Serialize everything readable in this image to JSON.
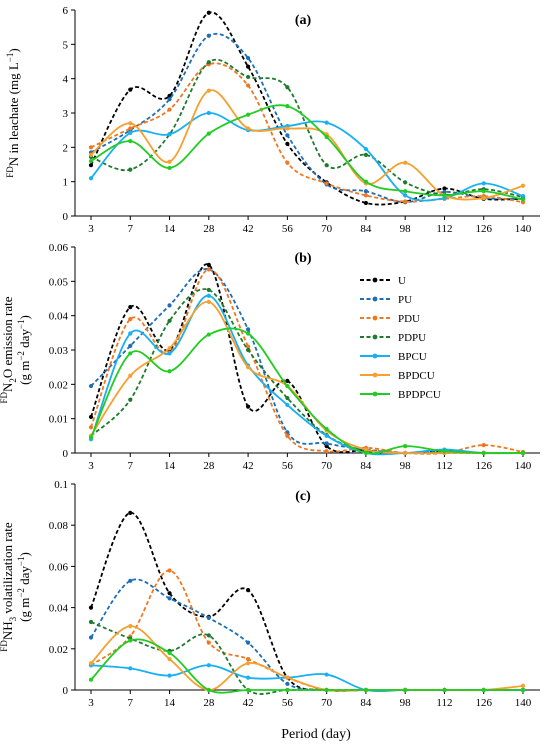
{
  "figure": {
    "xlabel": "Period (day)"
  },
  "chart_data": [
    {
      "type": "line",
      "panel_label": "(a)",
      "ylabel": {
        "prefix_sup": "FD",
        "main": "N in leachate (mg L",
        "unit_sup": "−1",
        "suffix": ")"
      },
      "categories": [
        "3",
        "7",
        "14",
        "28",
        "42",
        "56",
        "70",
        "84",
        "98",
        "112",
        "126",
        "140"
      ],
      "ylim": [
        0,
        6
      ],
      "yticks": [
        "0",
        "1",
        "2",
        "3",
        "4",
        "5",
        "6"
      ],
      "series": [
        {
          "name": "U",
          "values": [
            1.48,
            3.68,
            3.5,
            5.92,
            4.35,
            2.1,
            0.98,
            0.38,
            0.42,
            0.8,
            0.5,
            0.5
          ]
        },
        {
          "name": "PU",
          "values": [
            1.85,
            2.5,
            3.4,
            5.25,
            4.6,
            2.35,
            0.92,
            0.72,
            0.4,
            0.7,
            0.52,
            0.5
          ]
        },
        {
          "name": "PDU",
          "values": [
            2.0,
            2.55,
            3.1,
            4.42,
            3.8,
            1.55,
            0.95,
            0.6,
            0.42,
            0.5,
            0.58,
            0.4
          ]
        },
        {
          "name": "PDPU",
          "values": [
            1.72,
            1.35,
            2.38,
            4.48,
            4.05,
            3.75,
            1.48,
            1.78,
            0.98,
            0.62,
            0.78,
            0.55
          ]
        },
        {
          "name": "BPCU",
          "values": [
            1.1,
            2.42,
            2.38,
            3.0,
            2.5,
            2.62,
            2.72,
            1.95,
            0.6,
            0.52,
            0.95,
            0.58
          ]
        },
        {
          "name": "BPDCU",
          "values": [
            1.78,
            2.7,
            1.58,
            3.65,
            2.55,
            2.55,
            2.38,
            0.95,
            1.55,
            0.6,
            0.52,
            0.88
          ]
        },
        {
          "name": "BPDPCU",
          "values": [
            1.6,
            2.18,
            1.4,
            2.4,
            2.95,
            3.2,
            2.3,
            1.0,
            0.72,
            0.6,
            0.72,
            0.48
          ]
        }
      ]
    },
    {
      "type": "line",
      "panel_label": "(b)",
      "ylabel": {
        "prefix_sup": "FD",
        "main": "N",
        "sub": "2",
        "main2": "O emission rate",
        "line2": "(g m",
        "line2_sup": "−2",
        "line2_mid": " day",
        "line2_sup2": "−1",
        "line2_end": ")"
      },
      "categories": [
        "3",
        "7",
        "14",
        "28",
        "42",
        "56",
        "70",
        "84",
        "98",
        "112",
        "126",
        "140"
      ],
      "ylim": [
        0,
        0.06
      ],
      "yticks": [
        "0",
        "0.01",
        "0.02",
        "0.03",
        "0.04",
        "0.05",
        "0.06"
      ],
      "series": [
        {
          "name": "U",
          "values": [
            0.0105,
            0.0425,
            0.03,
            0.0548,
            0.0135,
            0.021,
            0.002,
            0.0008,
            0.0,
            0.0005,
            0.0,
            0.0
          ]
        },
        {
          "name": "PU",
          "values": [
            0.0195,
            0.0312,
            0.043,
            0.0535,
            0.036,
            0.006,
            0.0028,
            0.001,
            0.0,
            0.0005,
            0.0,
            0.0
          ]
        },
        {
          "name": "PDU",
          "values": [
            0.0075,
            0.039,
            0.0292,
            0.0535,
            0.031,
            0.005,
            0.0005,
            0.0015,
            0.0,
            0.0,
            0.0023,
            0.0003
          ]
        },
        {
          "name": "PDPU",
          "values": [
            0.005,
            0.0155,
            0.0385,
            0.0475,
            0.03,
            0.016,
            0.0052,
            0.0005,
            0.0,
            0.0,
            0.0,
            0.0
          ]
        },
        {
          "name": "BPCU",
          "values": [
            0.004,
            0.0348,
            0.029,
            0.0458,
            0.0255,
            0.014,
            0.005,
            0.0,
            0.0,
            0.001,
            0.0,
            0.0
          ]
        },
        {
          "name": "BPDCU",
          "values": [
            0.005,
            0.0225,
            0.0305,
            0.044,
            0.025,
            0.0195,
            0.0065,
            0.001,
            0.0,
            0.0,
            0.0,
            0.0
          ]
        },
        {
          "name": "BPDPCU",
          "values": [
            0.0045,
            0.029,
            0.0238,
            0.0345,
            0.0348,
            0.0195,
            0.007,
            0.0,
            0.002,
            0.0005,
            0.0,
            0.0
          ]
        }
      ]
    },
    {
      "type": "line",
      "panel_label": "(c)",
      "ylabel": {
        "prefix_sup": "FD",
        "main": "NH",
        "sub": "3",
        "main2": " volatilization rate",
        "line2": "(g m",
        "line2_sup": "−2",
        "line2_mid": " day",
        "line2_sup2": "−1",
        "line2_end": ")"
      },
      "categories": [
        "3",
        "7",
        "14",
        "28",
        "42",
        "56",
        "70",
        "84",
        "98",
        "112",
        "126",
        "140"
      ],
      "ylim": [
        0,
        0.1
      ],
      "yticks": [
        "0",
        "0.02",
        "0.04",
        "0.06",
        "0.08",
        "0.1"
      ],
      "series": [
        {
          "name": "U",
          "values": [
            0.04,
            0.086,
            0.047,
            0.0355,
            0.0485,
            0.006,
            0.0,
            0.0,
            0.0,
            0.0,
            0.0,
            0.0
          ]
        },
        {
          "name": "PU",
          "values": [
            0.0255,
            0.053,
            0.0445,
            0.035,
            0.023,
            0.003,
            0.0,
            0.0,
            0.0,
            0.0,
            0.0,
            0.0
          ]
        },
        {
          "name": "PDU",
          "values": [
            0.012,
            0.026,
            0.058,
            0.023,
            0.015,
            0.006,
            0.0,
            0.0,
            0.0,
            0.0,
            0.0,
            0.0
          ]
        },
        {
          "name": "PDPU",
          "values": [
            0.033,
            0.025,
            0.019,
            0.0265,
            0.0,
            0.0,
            0.0,
            0.0,
            0.0,
            0.0,
            0.0,
            0.0
          ]
        },
        {
          "name": "BPCU",
          "values": [
            0.012,
            0.0105,
            0.007,
            0.012,
            0.006,
            0.006,
            0.0075,
            0.0,
            0.0,
            0.0,
            0.0,
            0.0
          ]
        },
        {
          "name": "BPDCU",
          "values": [
            0.013,
            0.031,
            0.015,
            0.0,
            0.013,
            0.006,
            0.0,
            0.0,
            0.0,
            0.0,
            0.0,
            0.002
          ]
        },
        {
          "name": "BPDPCU",
          "values": [
            0.005,
            0.024,
            0.018,
            0.0,
            0.0,
            0.0,
            0.0,
            0.0,
            0.0,
            0.0,
            0.0,
            0.0
          ]
        }
      ]
    }
  ],
  "legend": {
    "placement": "inside panel (b), top-right",
    "entries": [
      "U",
      "PU",
      "PDU",
      "PDPU",
      "BPCU",
      "BPDCU",
      "BPDPCU"
    ]
  },
  "styles": {
    "U": {
      "color": "#000000",
      "dashed": true
    },
    "PU": {
      "color": "#1f6eb4",
      "dashed": true
    },
    "PDU": {
      "color": "#ee7722",
      "dashed": true
    },
    "PDPU": {
      "color": "#1e7a2e",
      "dashed": true
    },
    "BPCU": {
      "color": "#18b0f0",
      "dashed": false
    },
    "BPDCU": {
      "color": "#f5a030",
      "dashed": false
    },
    "BPDPCU": {
      "color": "#22cc22",
      "dashed": false
    },
    "axis": "#000000",
    "grid": false
  }
}
